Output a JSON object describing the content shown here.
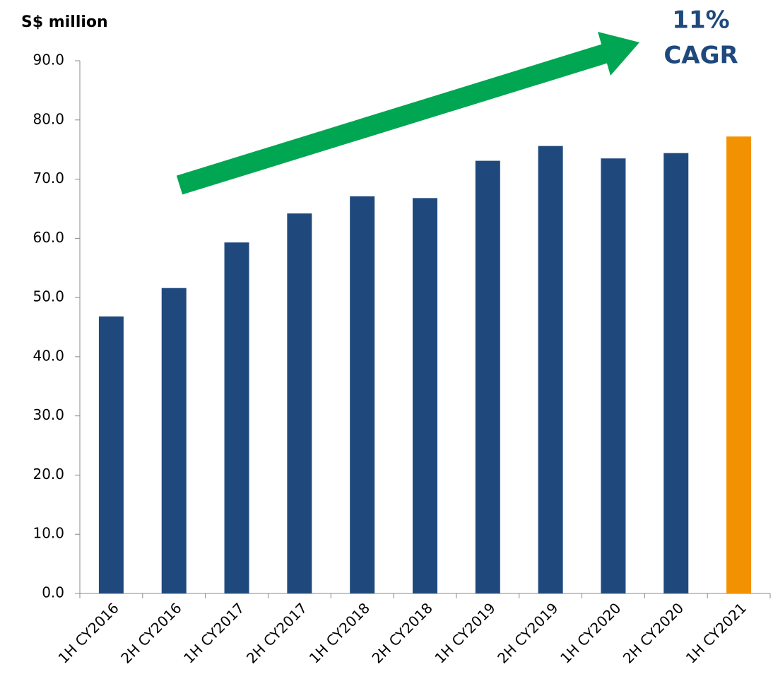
{
  "chart_data": {
    "type": "bar",
    "title": "S$ million",
    "annotations": [
      "11%",
      "CAGR"
    ],
    "categories": [
      "1H CY2016",
      "2H CY2016",
      "1H CY2017",
      "2H CY2017",
      "1H CY2018",
      "2H CY2018",
      "1H CY2019",
      "2H CY2019",
      "1H CY2020",
      "2H CY2020",
      "1H CY2021"
    ],
    "values": [
      46.8,
      51.6,
      59.3,
      64.2,
      67.1,
      66.8,
      73.1,
      75.6,
      73.5,
      74.4,
      77.2
    ],
    "colors": [
      "#1f497d",
      "#1f497d",
      "#1f497d",
      "#1f497d",
      "#1f497d",
      "#1f497d",
      "#1f497d",
      "#1f497d",
      "#1f497d",
      "#1f497d",
      "#f39200"
    ],
    "ylim": [
      0,
      90
    ],
    "yticks": [
      {
        "value": 0,
        "label": "0.0"
      },
      {
        "value": 10,
        "label": "10.0"
      },
      {
        "value": 20,
        "label": "20.0"
      },
      {
        "value": 30,
        "label": "30.0"
      },
      {
        "value": 40,
        "label": "40.0"
      },
      {
        "value": 50,
        "label": "50.0"
      },
      {
        "value": 60,
        "label": "60.0"
      },
      {
        "value": 70,
        "label": "70.0"
      },
      {
        "value": 80,
        "label": "80.0"
      },
      {
        "value": 90,
        "label": "90.0"
      }
    ],
    "grid": false
  }
}
